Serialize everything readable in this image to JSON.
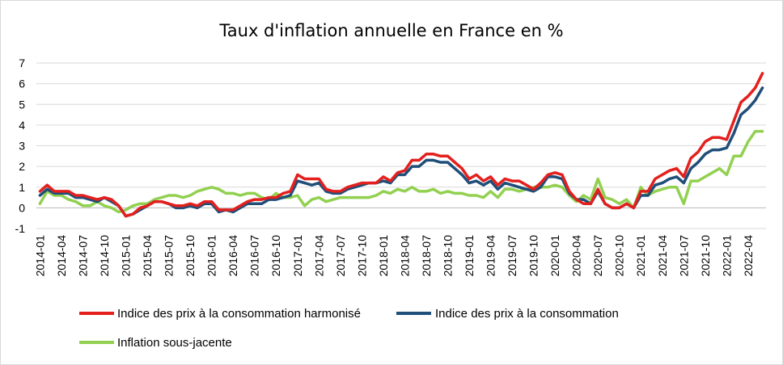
{
  "chart_data": {
    "type": "line",
    "title": "Taux d'inflation annuelle en France en %",
    "xlabel": "",
    "ylabel": "",
    "ylim": [
      -1,
      7
    ],
    "yticks": [
      "-1",
      "0",
      "1",
      "2",
      "3",
      "4",
      "5",
      "6",
      "7"
    ],
    "grid": "horizontal",
    "legend_position": "bottom",
    "x": [
      "2014-01",
      "2014-02",
      "2014-03",
      "2014-04",
      "2014-05",
      "2014-06",
      "2014-07",
      "2014-08",
      "2014-09",
      "2014-10",
      "2014-11",
      "2014-12",
      "2015-01",
      "2015-02",
      "2015-03",
      "2015-04",
      "2015-05",
      "2015-06",
      "2015-07",
      "2015-08",
      "2015-09",
      "2015-10",
      "2015-11",
      "2015-12",
      "2016-01",
      "2016-02",
      "2016-03",
      "2016-04",
      "2016-05",
      "2016-06",
      "2016-07",
      "2016-08",
      "2016-09",
      "2016-10",
      "2016-11",
      "2016-12",
      "2017-01",
      "2017-02",
      "2017-03",
      "2017-04",
      "2017-05",
      "2017-06",
      "2017-07",
      "2017-08",
      "2017-09",
      "2017-10",
      "2017-11",
      "2017-12",
      "2018-01",
      "2018-02",
      "2018-03",
      "2018-04",
      "2018-05",
      "2018-06",
      "2018-07",
      "2018-08",
      "2018-09",
      "2018-10",
      "2018-11",
      "2018-12",
      "2019-01",
      "2019-02",
      "2019-03",
      "2019-04",
      "2019-05",
      "2019-06",
      "2019-07",
      "2019-08",
      "2019-09",
      "2019-10",
      "2019-11",
      "2019-12",
      "2020-01",
      "2020-02",
      "2020-03",
      "2020-04",
      "2020-05",
      "2020-06",
      "2020-07",
      "2020-08",
      "2020-09",
      "2020-10",
      "2020-11",
      "2020-12",
      "2021-01",
      "2021-02",
      "2021-03",
      "2021-04",
      "2021-05",
      "2021-06",
      "2021-07",
      "2021-08",
      "2021-09",
      "2021-10",
      "2021-11",
      "2021-12",
      "2022-01",
      "2022-02",
      "2022-03",
      "2022-04",
      "2022-05",
      "2022-06"
    ],
    "xtick_labels": [
      "2014-01",
      "2014-04",
      "2014-07",
      "2014-10",
      "2015-01",
      "2015-04",
      "2015-07",
      "2015-10",
      "2016-01",
      "2016-04",
      "2016-07",
      "2016-10",
      "2017-01",
      "2017-04",
      "2017-07",
      "2017-10",
      "2018-01",
      "2018-04",
      "2018-07",
      "2018-10",
      "2019-01",
      "2019-04",
      "2019-07",
      "2019-10",
      "2020-01",
      "2020-04",
      "2020-07",
      "2020-10",
      "2021-01",
      "2021-04",
      "2021-07",
      "2021-10",
      "2022-01",
      "2022-04"
    ],
    "series": [
      {
        "name": "Indice des prix à la consommation harmonisé",
        "color": "#e3201e",
        "values": [
          0.8,
          1.1,
          0.8,
          0.8,
          0.8,
          0.6,
          0.6,
          0.5,
          0.4,
          0.5,
          0.4,
          0.1,
          -0.4,
          -0.3,
          0.0,
          0.1,
          0.3,
          0.3,
          0.2,
          0.1,
          0.1,
          0.2,
          0.1,
          0.3,
          0.3,
          -0.1,
          -0.1,
          -0.1,
          0.1,
          0.3,
          0.4,
          0.4,
          0.5,
          0.5,
          0.7,
          0.8,
          1.6,
          1.4,
          1.4,
          1.4,
          0.9,
          0.8,
          0.8,
          1.0,
          1.1,
          1.2,
          1.2,
          1.2,
          1.5,
          1.3,
          1.7,
          1.8,
          2.3,
          2.3,
          2.6,
          2.6,
          2.5,
          2.5,
          2.2,
          1.9,
          1.4,
          1.6,
          1.3,
          1.5,
          1.1,
          1.4,
          1.3,
          1.3,
          1.1,
          0.9,
          1.2,
          1.6,
          1.7,
          1.6,
          0.8,
          0.4,
          0.2,
          0.2,
          0.9,
          0.2,
          0.0,
          0.0,
          0.2,
          0.0,
          0.8,
          0.8,
          1.4,
          1.6,
          1.8,
          1.9,
          1.5,
          2.4,
          2.7,
          3.2,
          3.4,
          3.4,
          3.3,
          4.2,
          5.1,
          5.4,
          5.8,
          6.5
        ]
      },
      {
        "name": "Indice des prix à la consommation",
        "color": "#1f4e79",
        "values": [
          0.6,
          0.9,
          0.7,
          0.7,
          0.7,
          0.5,
          0.5,
          0.4,
          0.3,
          0.5,
          0.3,
          0.1,
          -0.4,
          -0.3,
          -0.1,
          0.1,
          0.3,
          0.3,
          0.2,
          0.0,
          0.0,
          0.1,
          0.0,
          0.2,
          0.2,
          -0.2,
          -0.1,
          -0.2,
          0.0,
          0.2,
          0.2,
          0.2,
          0.4,
          0.4,
          0.5,
          0.6,
          1.3,
          1.2,
          1.1,
          1.2,
          0.8,
          0.7,
          0.7,
          0.9,
          1.0,
          1.1,
          1.2,
          1.2,
          1.3,
          1.2,
          1.6,
          1.6,
          2.0,
          2.0,
          2.3,
          2.3,
          2.2,
          2.2,
          1.9,
          1.6,
          1.2,
          1.3,
          1.1,
          1.3,
          0.9,
          1.2,
          1.1,
          1.0,
          0.9,
          0.8,
          1.0,
          1.5,
          1.5,
          1.4,
          0.7,
          0.4,
          0.4,
          0.2,
          0.8,
          0.2,
          0.0,
          0.0,
          0.2,
          0.0,
          0.6,
          0.6,
          1.1,
          1.2,
          1.4,
          1.5,
          1.2,
          1.9,
          2.2,
          2.6,
          2.8,
          2.8,
          2.9,
          3.6,
          4.5,
          4.8,
          5.2,
          5.8
        ]
      },
      {
        "name": "Inflation sous-jacente",
        "color": "#92d050",
        "values": [
          0.2,
          0.8,
          0.6,
          0.6,
          0.4,
          0.3,
          0.1,
          0.1,
          0.3,
          0.1,
          0.0,
          -0.2,
          -0.1,
          0.1,
          0.2,
          0.2,
          0.4,
          0.5,
          0.6,
          0.6,
          0.5,
          0.6,
          0.8,
          0.9,
          1.0,
          0.9,
          0.7,
          0.7,
          0.6,
          0.7,
          0.7,
          0.5,
          0.4,
          0.7,
          0.5,
          0.5,
          0.6,
          0.1,
          0.4,
          0.5,
          0.3,
          0.4,
          0.5,
          0.5,
          0.5,
          0.5,
          0.5,
          0.6,
          0.8,
          0.7,
          0.9,
          0.8,
          1.0,
          0.8,
          0.8,
          0.9,
          0.7,
          0.8,
          0.7,
          0.7,
          0.6,
          0.6,
          0.5,
          0.8,
          0.5,
          0.9,
          0.9,
          0.8,
          0.9,
          1.0,
          1.0,
          1.0,
          1.1,
          1.0,
          0.6,
          0.3,
          0.6,
          0.4,
          1.4,
          0.5,
          0.4,
          0.2,
          0.4,
          0.0,
          1.0,
          0.6,
          0.8,
          0.9,
          1.0,
          1.0,
          0.2,
          1.3,
          1.3,
          1.5,
          1.7,
          1.9,
          1.6,
          2.5,
          2.5,
          3.2,
          3.7,
          3.7
        ]
      }
    ]
  }
}
